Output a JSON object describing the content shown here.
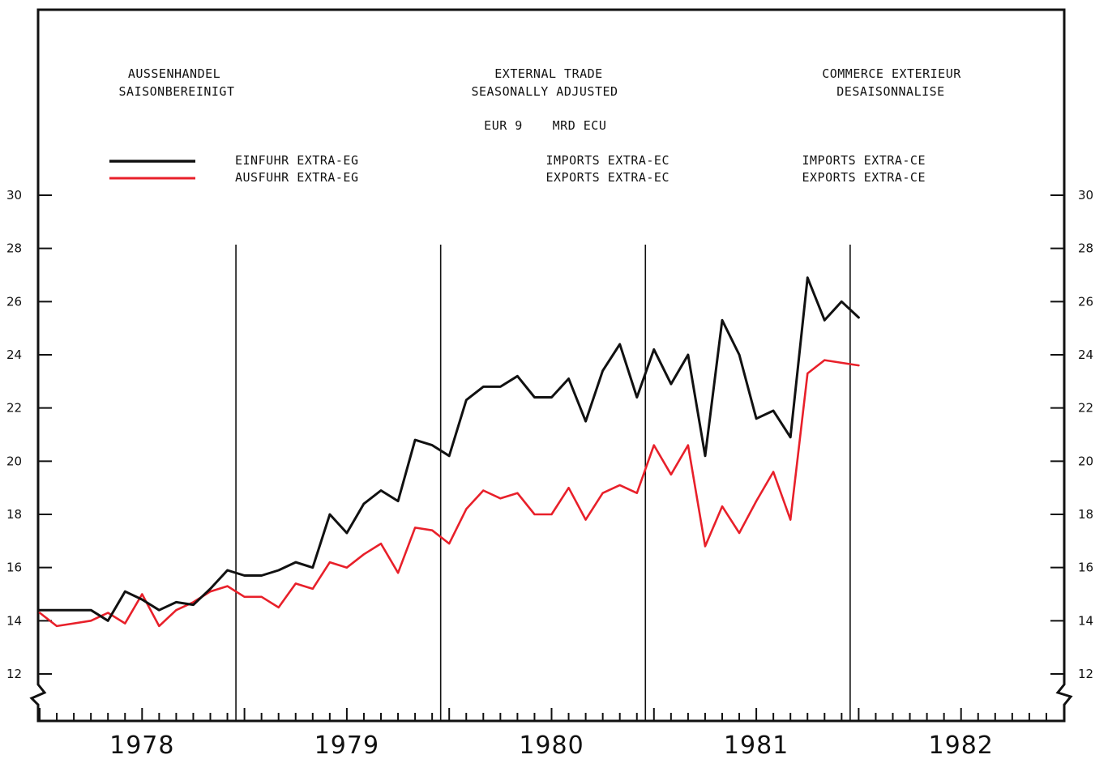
{
  "header": {
    "de_title": "AUSSENHANDEL",
    "de_subtitle": "SAISONBEREINIGT",
    "en_title": "EXTERNAL TRADE",
    "en_subtitle": "SEASONALLY ADJUSTED",
    "fr_title": "COMMERCE EXTERIEUR",
    "fr_subtitle": "DESAISONNALISE",
    "zone": "EUR 9",
    "unit": "MRD ECU"
  },
  "legend": {
    "imports_de": "EINFUHR EXTRA-EG",
    "exports_de": "AUSFUHR EXTRA-EG",
    "imports_en": "IMPORTS EXTRA-EC",
    "exports_en": "EXPORTS EXTRA-EC",
    "imports_fr": "IMPORTS EXTRA-CE",
    "exports_fr": "EXPORTS EXTRA-CE"
  },
  "colors": {
    "imports": "#111111",
    "exports": "#e8202a"
  },
  "chart_data": {
    "type": "line",
    "x_unit": "month",
    "x_start": "1978-01",
    "xlim": [
      "1978-01",
      "1982-12"
    ],
    "ylim": [
      11,
      33
    ],
    "yticks": [
      12,
      14,
      16,
      18,
      20,
      22,
      24,
      26,
      28,
      30
    ],
    "year_labels": [
      "1978",
      "1979",
      "1980",
      "1981",
      "1982"
    ],
    "x_ticks": "monthly, labelled by year",
    "year_dividers": [
      "1979-01",
      "1980-01",
      "1981-01",
      "1982-01"
    ],
    "series": [
      {
        "name": "EINFUHR EXTRA-EG / IMPORTS EXTRA-EC / IMPORTS EXTRA-CE",
        "key": "imports",
        "values": [
          14.4,
          14.4,
          14.4,
          14.4,
          14.0,
          15.1,
          14.8,
          14.4,
          14.7,
          14.6,
          15.2,
          15.9,
          15.7,
          15.7,
          15.9,
          16.2,
          16.0,
          18.0,
          17.3,
          18.4,
          18.9,
          18.5,
          20.8,
          20.6,
          20.2,
          22.3,
          22.8,
          22.8,
          23.2,
          22.4,
          22.4,
          23.1,
          21.5,
          23.4,
          24.4,
          22.4,
          24.2,
          22.9,
          24.0,
          20.2,
          25.3,
          24.0,
          21.6,
          21.9,
          20.9,
          26.9,
          25.3,
          26.0,
          25.4
        ]
      },
      {
        "name": "AUSFUHR EXTRA-EG / EXPORTS EXTRA-EC / EXPORTS EXTRA-CE",
        "key": "exports",
        "values": [
          14.3,
          13.8,
          13.9,
          14.0,
          14.3,
          13.9,
          15.0,
          13.8,
          14.4,
          14.7,
          15.1,
          15.3,
          14.9,
          14.9,
          14.5,
          15.4,
          15.2,
          16.2,
          16.0,
          16.5,
          16.9,
          15.8,
          17.5,
          17.4,
          16.9,
          18.2,
          18.9,
          18.6,
          18.8,
          18.0,
          18.0,
          19.0,
          17.8,
          18.8,
          19.1,
          18.8,
          20.6,
          19.5,
          20.6,
          16.8,
          18.3,
          17.3,
          18.5,
          19.6,
          17.8,
          23.3,
          23.8,
          23.7,
          23.6
        ]
      }
    ]
  }
}
